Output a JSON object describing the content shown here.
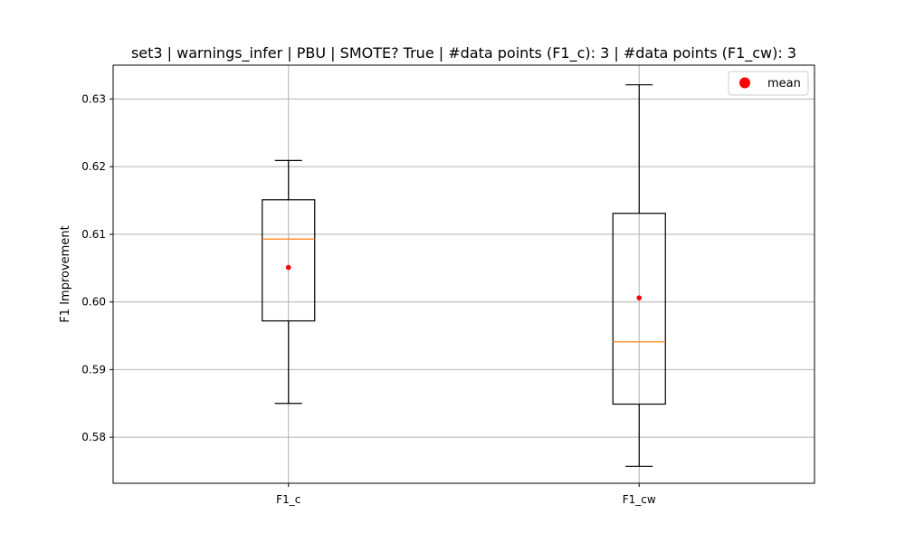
{
  "chart_data": {
    "type": "box",
    "title": "set3 | warnings_infer | PBU | SMOTE? True | #data points (F1_c): 3 | #data points (F1_cw): 3",
    "xlabel": "",
    "ylabel": "F1 Improvement",
    "categories": [
      "F1_c",
      "F1_cw"
    ],
    "ylim": [
      0.5732,
      0.635
    ],
    "yticks": [
      "0.58",
      "0.59",
      "0.60",
      "0.61",
      "0.62",
      "0.63"
    ],
    "grid": true,
    "legend": {
      "position": "top-right",
      "entries": [
        "mean"
      ]
    },
    "boxes": [
      {
        "name": "F1_c",
        "whisker_low": 0.585,
        "q1": 0.5972,
        "median": 0.6093,
        "q3": 0.6151,
        "whisker_high": 0.6209,
        "mean": 0.6051
      },
      {
        "name": "F1_cw",
        "whisker_low": 0.5757,
        "q1": 0.5849,
        "median": 0.5941,
        "q3": 0.6131,
        "whisker_high": 0.6321,
        "mean": 0.6006
      }
    ],
    "colors": {
      "box": "#000000",
      "median": "#ff7f0e",
      "mean": "#ff0000",
      "grid": "#b0b0b0"
    }
  }
}
